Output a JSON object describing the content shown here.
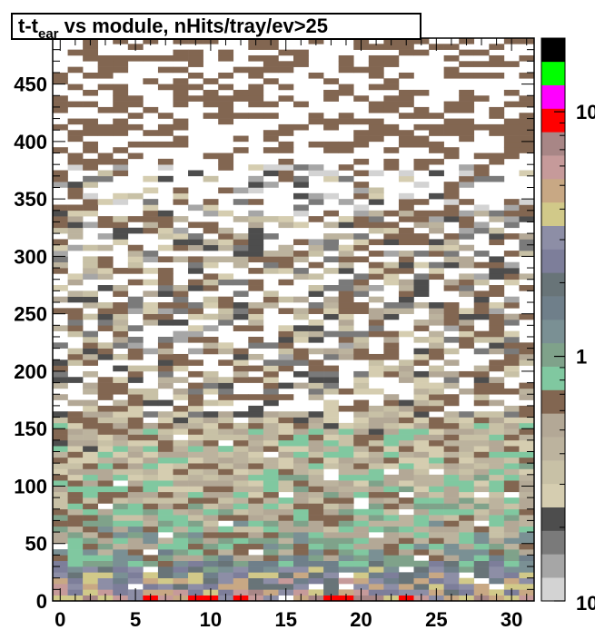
{
  "chart_data": {
    "type": "heatmap",
    "title": {
      "prefix": "t-t",
      "subscript": "ear",
      "suffix": " vs module, nHits/tray/ev>25"
    },
    "x": {
      "range": [
        -0.5,
        31.5
      ],
      "ticks": [
        0,
        5,
        10,
        15,
        20,
        25,
        30
      ],
      "tick_labels": [
        "0",
        "5",
        "10",
        "15",
        "20",
        "25",
        "30"
      ],
      "bins": 32
    },
    "y": {
      "range": [
        0,
        490
      ],
      "ticks": [
        0,
        50,
        100,
        150,
        200,
        250,
        300,
        350,
        400,
        450
      ],
      "tick_labels": [
        "0",
        "50",
        "100",
        "150",
        "200",
        "250",
        "300",
        "350",
        "400",
        "450"
      ],
      "bin_width": 5
    },
    "z": {
      "scale": "log",
      "range": [
        0.1,
        20
      ],
      "tick_labels": [
        "10",
        "1",
        "10"
      ]
    },
    "density_profile": [
      {
        "y": 0,
        "level": 19
      },
      {
        "y": 10,
        "level": 15
      },
      {
        "y": 20,
        "level": 15
      },
      {
        "y": 30,
        "level": 12
      },
      {
        "y": 40,
        "level": 9
      },
      {
        "y": 60,
        "level": 8
      },
      {
        "y": 100,
        "level": 7
      },
      {
        "y": 150,
        "level": 6
      },
      {
        "y": 165,
        "level": 5
      },
      {
        "y": 200,
        "level": 4
      },
      {
        "y": 280,
        "level": 4
      },
      {
        "y": 335,
        "level": 4
      },
      {
        "y": 340,
        "level": 2
      },
      {
        "y": 420,
        "level": 1
      },
      {
        "y": 490,
        "level": 1
      }
    ],
    "palette": [
      "#d3d3d3",
      "#a6a6a6",
      "#7a7a7a",
      "#4d4d4d",
      "#d5cdb0",
      "#c8c1a6",
      "#bcb39e",
      "#b3a896",
      "#826651",
      "#80c8a0",
      "#7fa28a",
      "#7a9094",
      "#6f7f8a",
      "#687478",
      "#7d7e9a",
      "#8d8ea6",
      "#d1c989",
      "#c8a884",
      "#c69a9a",
      "#a88686",
      "#ff0000",
      "#ff00ff",
      "#00ff00",
      "#000000"
    ]
  }
}
